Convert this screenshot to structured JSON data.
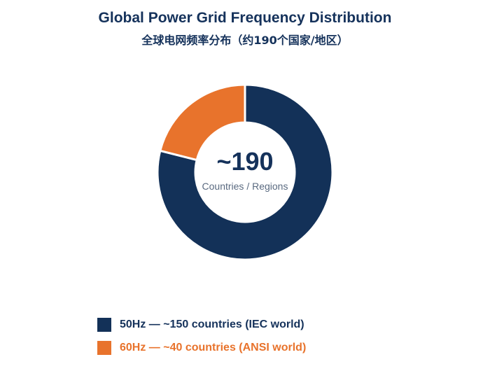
{
  "title": "Global Power Grid Frequency Distribution",
  "subtitle": "全球电网频率分布（约190个国家/地区）",
  "colors": {
    "hz50": "#133158",
    "hz60": "#e8732c",
    "text_dark": "#15325b",
    "text_muted": "#5a6a80"
  },
  "chart_data": {
    "type": "pie",
    "title": "Global Power Grid Frequency Distribution",
    "subtitle": "全球电网频率分布（约190个国家/地区）",
    "center_value": "~190",
    "center_label": "Countries / Regions",
    "slices": [
      {
        "name": "50Hz — ~150 countries (IEC world)",
        "value": 150,
        "color": "#133158"
      },
      {
        "name": "60Hz — ~40 countries (ANSI world)",
        "value": 40,
        "color": "#e8732c"
      }
    ],
    "legend_position": "bottom-left"
  }
}
